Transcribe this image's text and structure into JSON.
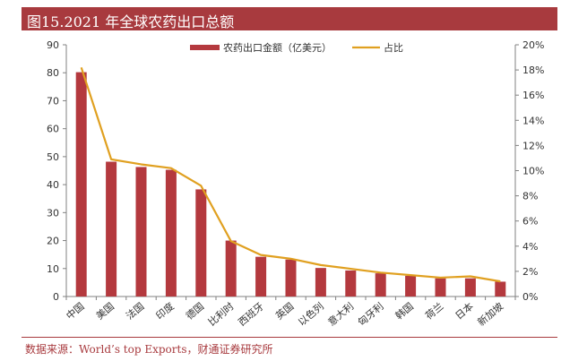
{
  "title": "图15.2021 年全球农药出口总额",
  "source": "数据来源：World’s top Exports，财通证券研究所",
  "colors": {
    "bar": "#b4393e",
    "line": "#e0a020",
    "title_bg": "#a83a3e",
    "axis": "#808080"
  },
  "chart_data": {
    "type": "bar",
    "categories": [
      "中国",
      "美国",
      "法国",
      "印度",
      "德国",
      "比利时",
      "西班牙",
      "英国",
      "以色列",
      "意大利",
      "匈牙利",
      "韩国",
      "荷兰",
      "日本",
      "新加坡"
    ],
    "series": [
      {
        "name": "农药出口金额（亿美元）",
        "type": "bar",
        "axis": "left",
        "values": [
          80.2,
          48.2,
          46.3,
          45.3,
          38.3,
          20.0,
          14.2,
          13.2,
          10.2,
          9.3,
          8.3,
          7.4,
          6.5,
          6.5,
          5.3
        ]
      },
      {
        "name": "占比",
        "type": "line",
        "axis": "right",
        "values": [
          18.2,
          10.9,
          10.5,
          10.2,
          8.8,
          4.4,
          3.3,
          3.0,
          2.5,
          2.2,
          1.9,
          1.7,
          1.5,
          1.6,
          1.2
        ]
      }
    ],
    "y_left": {
      "min": 0,
      "max": 90,
      "step": 10
    },
    "y_right": {
      "min": 0,
      "max": 20,
      "step": 2,
      "suffix": "%"
    },
    "legend_position": "top-center"
  }
}
